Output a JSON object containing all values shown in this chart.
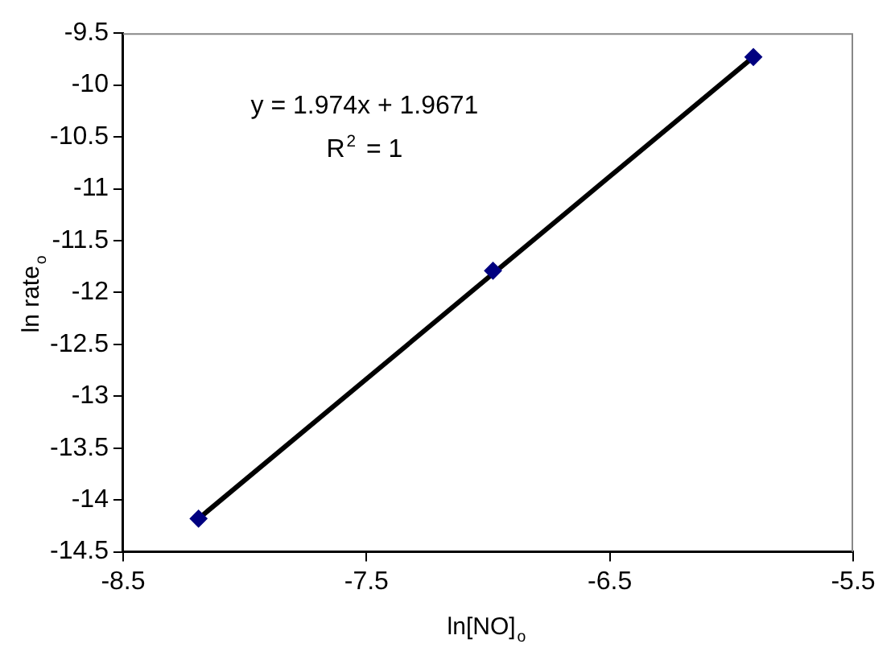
{
  "chart_data": {
    "type": "scatter",
    "xlabel": "ln[NO]$_{o}$",
    "ylabel": "ln rate$_{o}$",
    "xlim": [
      -8.5,
      -5.5
    ],
    "xticks": [
      -8.5,
      -7.5,
      -6.5,
      -5.5
    ],
    "ylim": [
      -14.5,
      -9.5
    ],
    "yticks": [
      -14.5,
      -14,
      -13.5,
      -13,
      -12.5,
      -12,
      -11.5,
      -11,
      -10.5,
      -10,
      -9.5
    ],
    "grid": false,
    "legend": false,
    "marker": "diamond",
    "series": [
      {
        "type": "line",
        "color": "#000000",
        "marker": "none",
        "line_style": "solid",
        "x": [
          -8.19,
          -5.91
        ],
        "values": [
          -14.18,
          -9.73
        ]
      },
      {
        "type": "scatter",
        "color": "#000080",
        "x": [
          -8.19,
          -6.98,
          -5.91
        ],
        "values": [
          -14.18,
          -11.79,
          -9.73
        ]
      }
    ],
    "annotations": [
      "y = 1.974x + 1.9671",
      "R$^{2}$ = 1"
    ]
  }
}
